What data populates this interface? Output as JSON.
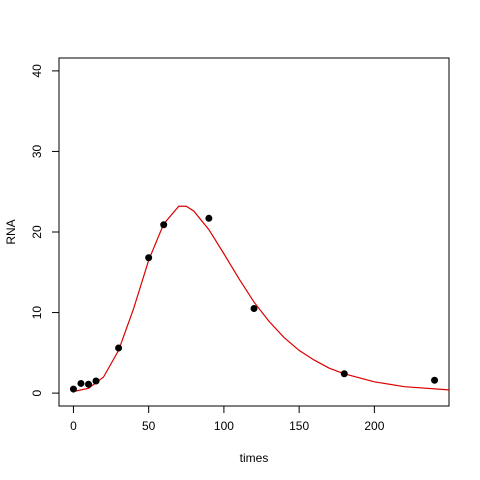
{
  "chart_data": {
    "type": "scatter",
    "x_label": "times",
    "y_label": "RNA",
    "xlim": [
      -9.6,
      249.6
    ],
    "ylim": [
      -1.6,
      41.6
    ],
    "xticks": [
      0,
      50,
      100,
      150,
      200
    ],
    "yticks": [
      0,
      10,
      20,
      30,
      40
    ],
    "grid": false,
    "series": [
      {
        "type": "points",
        "color": "#000000",
        "x": [
          0,
          5,
          10,
          15,
          30,
          50,
          60,
          90,
          120,
          180,
          240
        ],
        "values": [
          0.5,
          1.2,
          1.1,
          1.5,
          5.6,
          16.8,
          20.9,
          21.7,
          10.5,
          2.4,
          1.6
        ]
      },
      {
        "type": "line",
        "color": "#dd0000",
        "x": [
          0,
          10,
          20,
          30,
          40,
          50,
          60,
          70,
          75,
          80,
          90,
          100,
          110,
          120,
          130,
          140,
          150,
          160,
          170,
          180,
          200,
          220,
          249.6
        ],
        "values": [
          0.2,
          0.6,
          2,
          5.3,
          10.5,
          16.5,
          21,
          23.2,
          23.2,
          22.6,
          20.3,
          17.3,
          14.2,
          11.3,
          8.9,
          6.9,
          5.3,
          4.1,
          3.1,
          2.4,
          1.4,
          0.8,
          0.4
        ]
      }
    ]
  }
}
